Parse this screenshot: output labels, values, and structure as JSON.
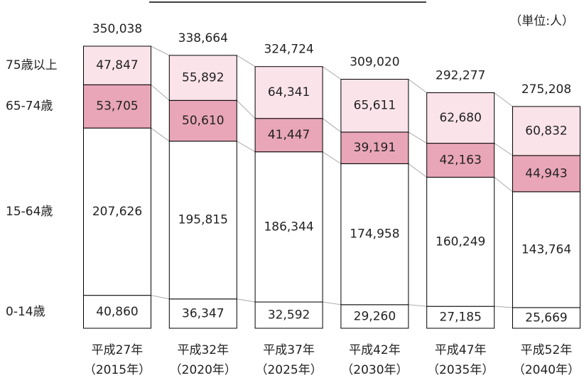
{
  "chart_data": {
    "type": "stacked_bar",
    "unit_label": "（単位:人）",
    "categories": [
      [
        "平成27年",
        "（2015年）"
      ],
      [
        "平成32年",
        "（2020年）"
      ],
      [
        "平成37年",
        "（2025年）"
      ],
      [
        "平成42年",
        "（2030年）"
      ],
      [
        "平成47年",
        "（2035年）"
      ],
      [
        "平成52年",
        "（2040年）"
      ]
    ],
    "series": [
      {
        "name": "0-14歳",
        "color": "#ffffff",
        "values": [
          40860,
          36347,
          32592,
          29260,
          27185,
          25669
        ],
        "value_labels": [
          "40,860",
          "36,347",
          "32,592",
          "29,260",
          "27,185",
          "25,669"
        ]
      },
      {
        "name": "15-64歳",
        "color": "#ffffff",
        "values": [
          207626,
          195815,
          186344,
          174958,
          160249,
          143764
        ],
        "value_labels": [
          "207,626",
          "195,815",
          "186,344",
          "174,958",
          "160,249",
          "143,764"
        ]
      },
      {
        "name": "65-74歳",
        "color": "#e9a6b8",
        "values": [
          53705,
          50610,
          41447,
          39191,
          42163,
          44943
        ],
        "value_labels": [
          "53,705",
          "50,610",
          "41,447",
          "39,191",
          "42,163",
          "44,943"
        ]
      },
      {
        "name": "75歳以上",
        "color": "#fbe3ea",
        "values": [
          47847,
          55892,
          64341,
          65611,
          62680,
          60832
        ],
        "value_labels": [
          "47,847",
          "55,892",
          "64,341",
          "65,611",
          "62,680",
          "60,832"
        ]
      }
    ],
    "totals": {
      "values": [
        350038,
        338664,
        324724,
        309020,
        292277,
        275208
      ],
      "value_labels": [
        "350,038",
        "338,664",
        "324,724",
        "309,020",
        "292,277",
        "275,208"
      ]
    }
  }
}
